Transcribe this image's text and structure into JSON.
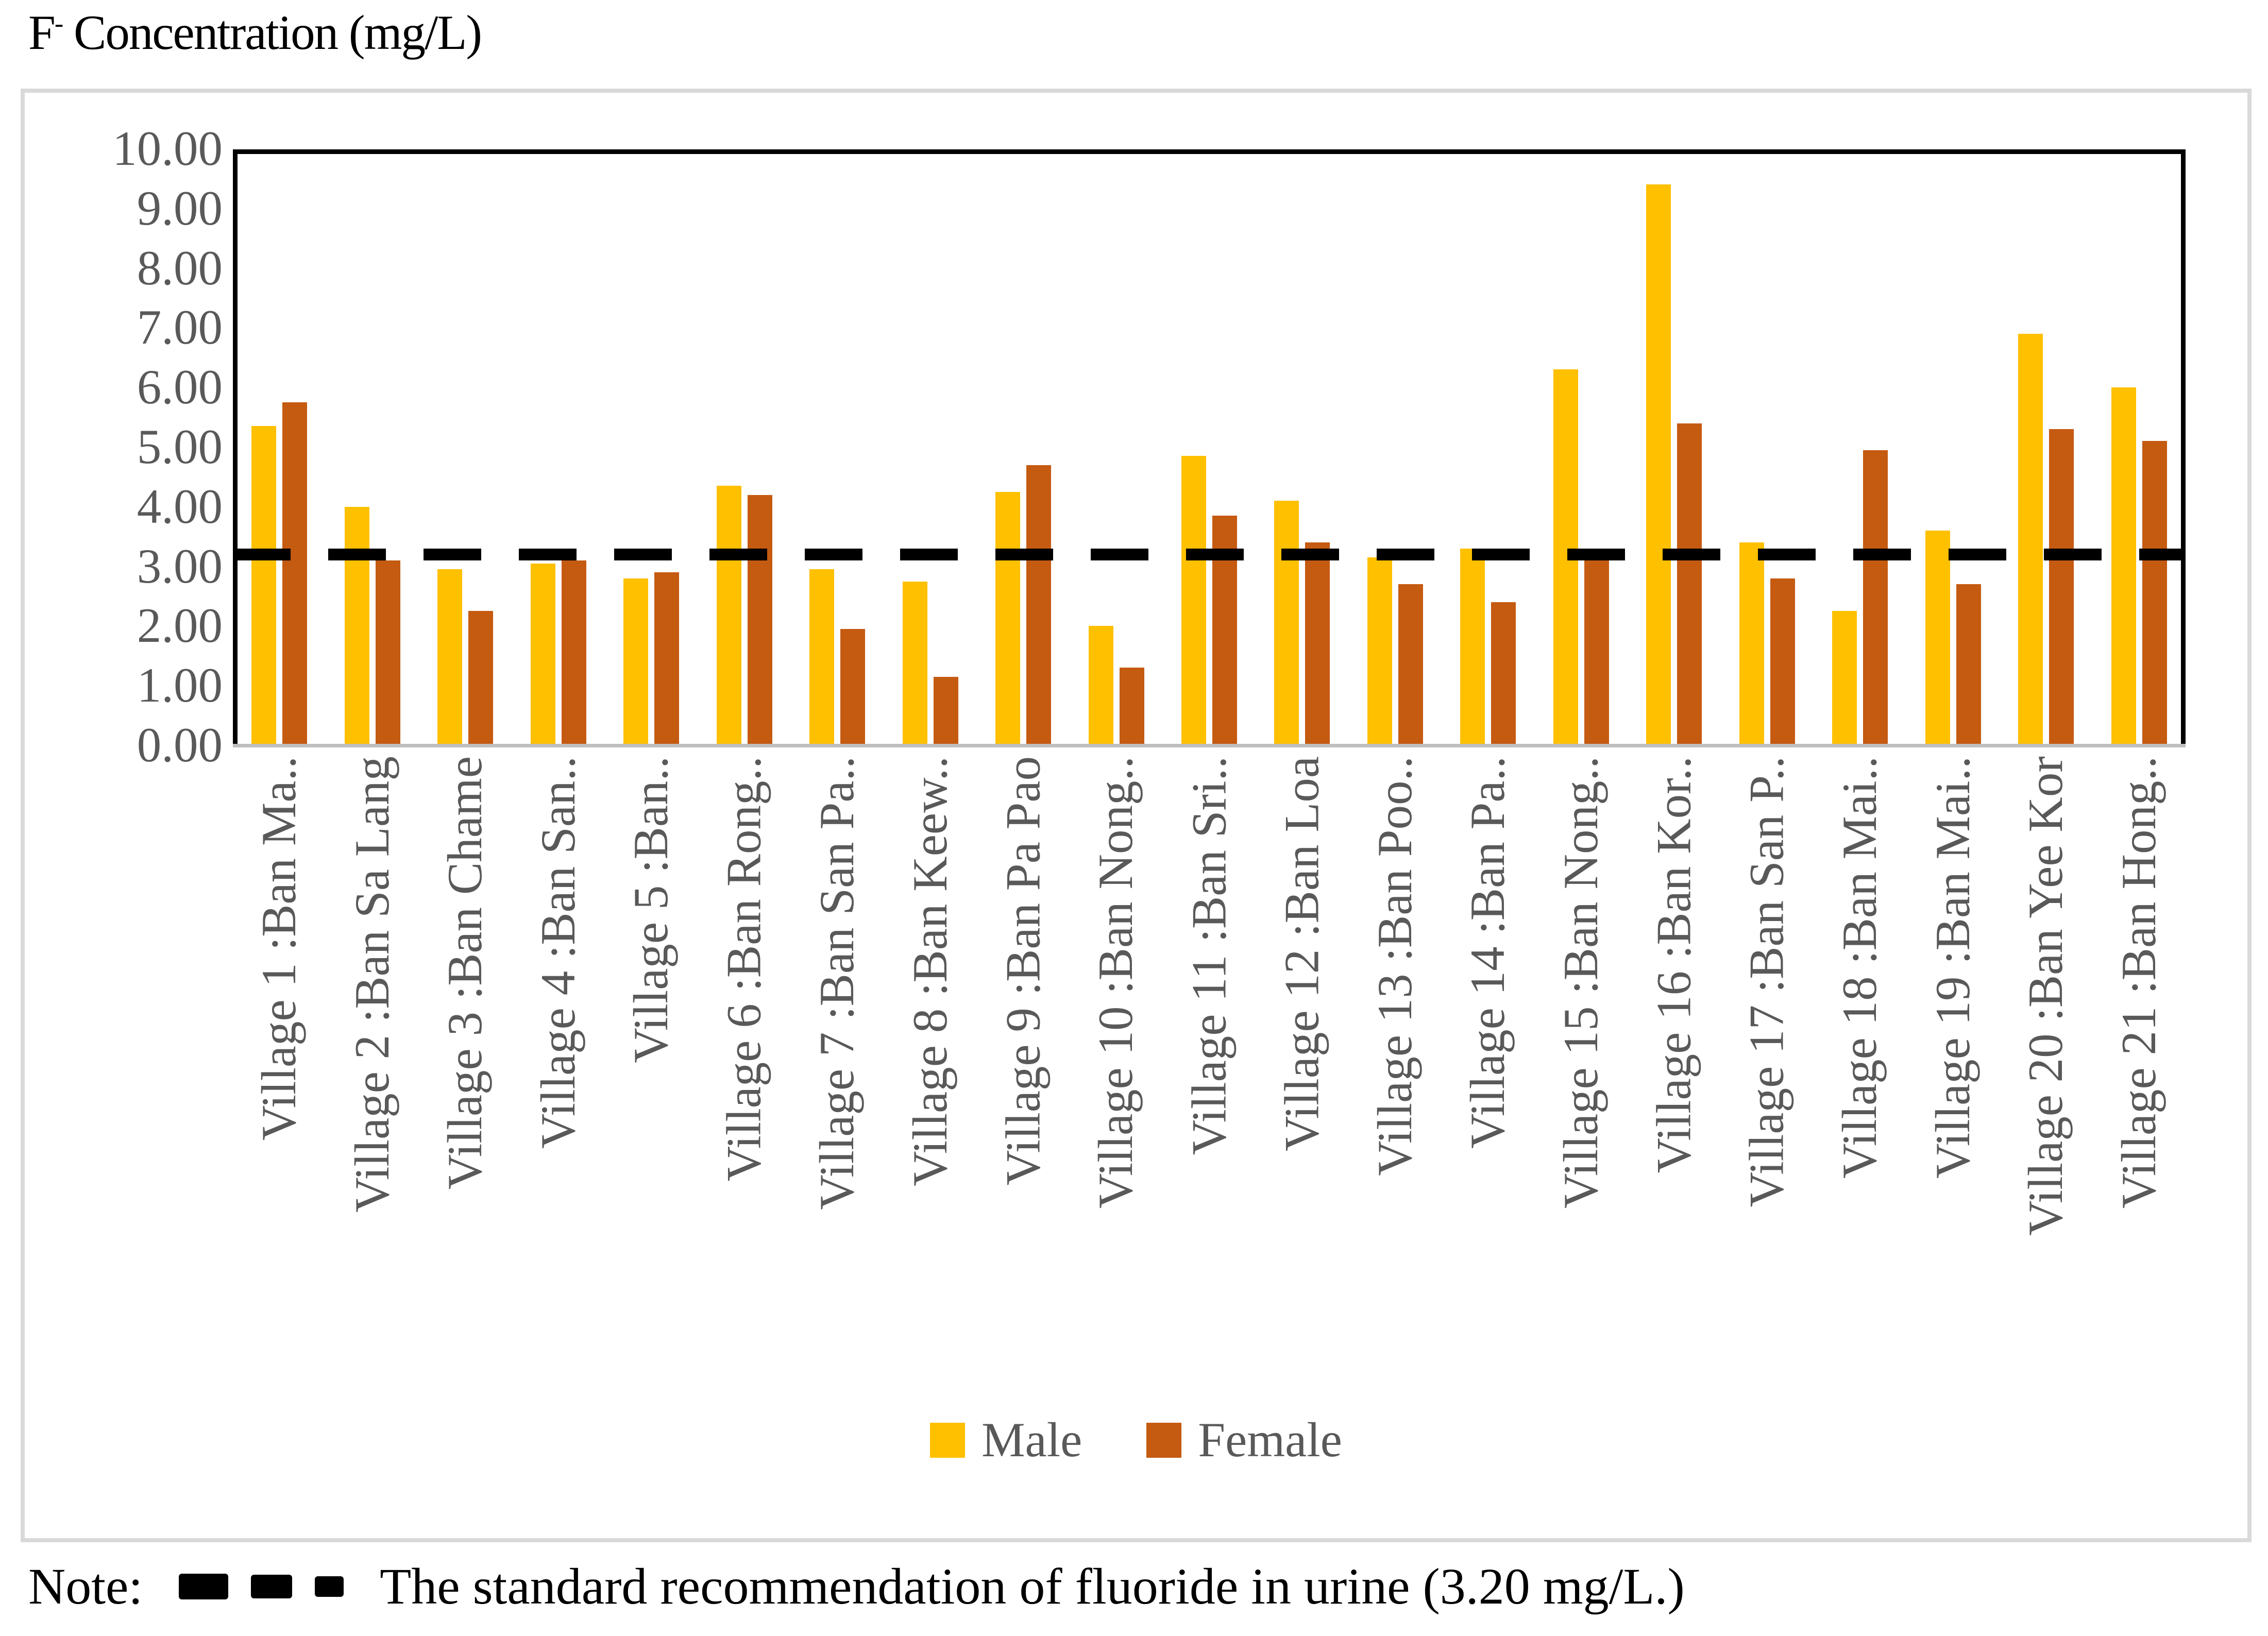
{
  "title": {
    "element": "F",
    "superscript": "-",
    "rest": "Concentration (mg/L)"
  },
  "legend": {
    "male": "Male",
    "female": "Female"
  },
  "note": {
    "prefix": "Note:",
    "dash_sample": "dashed-reference-line",
    "text": "The standard recommendation of fluoride in urine (3.20 mg/L.)"
  },
  "colors": {
    "male": "#FFC000",
    "female": "#C55A11",
    "axis_text": "#595959",
    "plot_frame": "#000000",
    "container_border": "#D9D9D9",
    "axis_line": "#BFBFBF",
    "reference_line": "#000000"
  },
  "chart_data": {
    "type": "bar",
    "title": "F- Concentration (mg/L)",
    "xlabel": "",
    "ylabel": "F- Concentration (mg/L)",
    "ylim": [
      0,
      10
    ],
    "ytick_step": 1.0,
    "ytick_decimals": 2,
    "grid": false,
    "legend_position": "bottom",
    "categories": [
      "Village 1 :Ban Ma..",
      "Village 2 :Ban Sa Lang",
      "Village 3 :Ban Chame",
      "Village 4 :Ban San..",
      "Village 5 :Ban..",
      "Village 6 :Ban Rong..",
      "Village 7 :Ban San Pa..",
      "Village 8 :Ban Keew..",
      "Village 9 :Ban Pa Pao",
      "Village 10 :Ban Nong..",
      "Village 11 :Ban Sri..",
      "Village 12 :Ban Loa",
      "Village 13 :Ban Poo..",
      "Village 14 :Ban Pa..",
      "Village 15 :Ban Nong..",
      "Village 16 :Ban Kor..",
      "Village 17 :Ban San P..",
      "Village 18 :Ban Mai..",
      "Village 19 :Ban Mai..",
      "Village 20 :Ban Yee Kor",
      "Village 21 :Ban Hong.."
    ],
    "series": [
      {
        "name": "Male",
        "color": "#FFC000",
        "values": [
          5.35,
          4.0,
          2.95,
          3.05,
          2.8,
          4.35,
          2.95,
          2.75,
          4.25,
          2.0,
          4.85,
          4.1,
          3.15,
          3.3,
          6.3,
          9.4,
          3.4,
          2.25,
          3.6,
          6.9,
          6.0
        ]
      },
      {
        "name": "Female",
        "color": "#C55A11",
        "values": [
          5.75,
          3.1,
          2.25,
          3.1,
          2.9,
          4.2,
          1.95,
          1.15,
          4.7,
          1.3,
          3.85,
          3.4,
          2.7,
          2.4,
          3.25,
          5.4,
          2.8,
          4.95,
          2.7,
          5.3,
          5.1
        ]
      }
    ],
    "reference_line": {
      "value": 3.2,
      "style": "dashed",
      "color": "#000000",
      "label": "The standard recommendation of fluoride in urine (3.20 mg/L.)"
    }
  }
}
